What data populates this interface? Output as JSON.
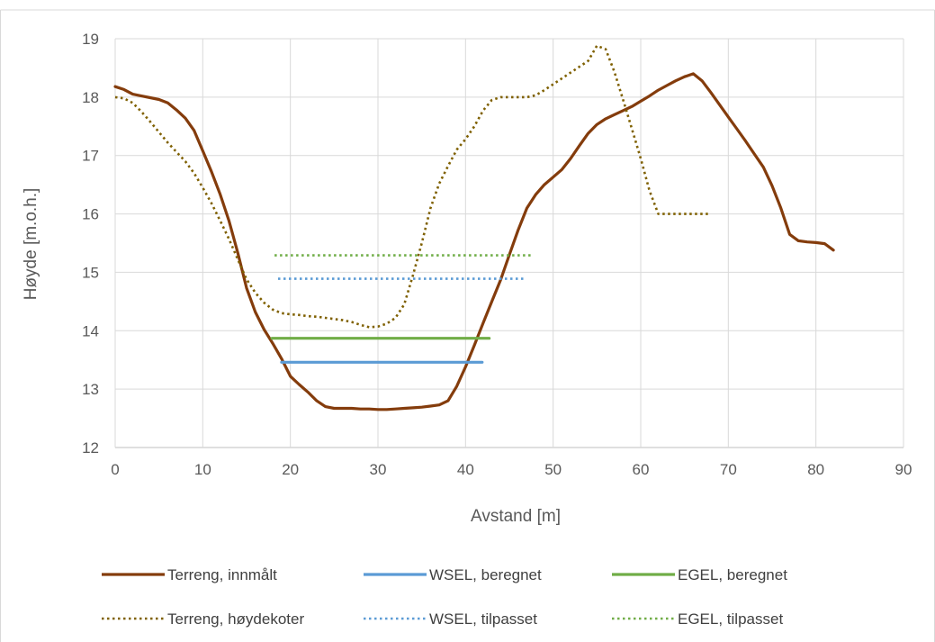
{
  "chart_data": {
    "type": "line",
    "title": "",
    "xlabel": "Avstand [m]",
    "ylabel": "Høyde [m.o.h.]",
    "xlim": [
      0,
      90
    ],
    "ylim": [
      12,
      19
    ],
    "x_ticks": [
      0,
      10,
      20,
      30,
      40,
      50,
      60,
      70,
      80,
      90
    ],
    "y_ticks": [
      12,
      13,
      14,
      15,
      16,
      17,
      18,
      19
    ],
    "grid": true,
    "legend_position": "bottom",
    "series": [
      {
        "name": "Terreng, innmålt",
        "color": "#843C0C",
        "style": "solid",
        "points": [
          [
            0,
            18.18
          ],
          [
            1,
            18.13
          ],
          [
            2,
            18.05
          ],
          [
            3,
            18.02
          ],
          [
            4,
            17.99
          ],
          [
            5,
            17.96
          ],
          [
            6,
            17.9
          ],
          [
            7,
            17.78
          ],
          [
            8,
            17.64
          ],
          [
            9,
            17.43
          ],
          [
            10,
            17.08
          ],
          [
            11,
            16.72
          ],
          [
            12,
            16.33
          ],
          [
            13,
            15.88
          ],
          [
            14,
            15.33
          ],
          [
            15,
            14.73
          ],
          [
            16,
            14.32
          ],
          [
            17,
            14.02
          ],
          [
            18,
            13.78
          ],
          [
            19,
            13.52
          ],
          [
            20,
            13.22
          ],
          [
            21,
            13.08
          ],
          [
            22,
            12.95
          ],
          [
            23,
            12.8
          ],
          [
            24,
            12.7
          ],
          [
            25,
            12.67
          ],
          [
            26,
            12.67
          ],
          [
            27,
            12.67
          ],
          [
            28,
            12.66
          ],
          [
            29,
            12.66
          ],
          [
            30,
            12.65
          ],
          [
            31,
            12.65
          ],
          [
            32,
            12.66
          ],
          [
            33,
            12.67
          ],
          [
            34,
            12.68
          ],
          [
            35,
            12.69
          ],
          [
            36,
            12.71
          ],
          [
            37,
            12.73
          ],
          [
            38,
            12.8
          ],
          [
            39,
            13.05
          ],
          [
            40,
            13.38
          ],
          [
            41,
            13.75
          ],
          [
            42,
            14.13
          ],
          [
            43,
            14.5
          ],
          [
            44,
            14.87
          ],
          [
            45,
            15.3
          ],
          [
            46,
            15.72
          ],
          [
            47,
            16.1
          ],
          [
            48,
            16.33
          ],
          [
            49,
            16.5
          ],
          [
            50,
            16.63
          ],
          [
            51,
            16.76
          ],
          [
            52,
            16.95
          ],
          [
            53,
            17.17
          ],
          [
            54,
            17.38
          ],
          [
            55,
            17.53
          ],
          [
            56,
            17.63
          ],
          [
            57,
            17.7
          ],
          [
            58,
            17.77
          ],
          [
            59,
            17.84
          ],
          [
            60,
            17.93
          ],
          [
            61,
            18.02
          ],
          [
            62,
            18.12
          ],
          [
            63,
            18.2
          ],
          [
            64,
            18.28
          ],
          [
            65,
            18.35
          ],
          [
            66,
            18.4
          ],
          [
            67,
            18.28
          ],
          [
            68,
            18.08
          ],
          [
            69,
            17.87
          ],
          [
            70,
            17.66
          ],
          [
            71,
            17.45
          ],
          [
            72,
            17.24
          ],
          [
            73,
            17.02
          ],
          [
            74,
            16.8
          ],
          [
            75,
            16.48
          ],
          [
            76,
            16.1
          ],
          [
            77,
            15.65
          ],
          [
            78,
            15.54
          ],
          [
            79,
            15.52
          ],
          [
            80,
            15.51
          ],
          [
            81,
            15.49
          ],
          [
            82,
            15.38
          ]
        ]
      },
      {
        "name": "WSEL, beregnet",
        "color": "#5B9BD5",
        "style": "solid",
        "points": [
          [
            19,
            13.46
          ],
          [
            41.9,
            13.46
          ]
        ]
      },
      {
        "name": "EGEL, beregnet",
        "color": "#70AD47",
        "style": "solid",
        "points": [
          [
            17.9,
            13.87
          ],
          [
            42.7,
            13.87
          ]
        ]
      },
      {
        "name": "Terreng, høydekoter",
        "color": "#7F6000",
        "style": "dotted",
        "points": [
          [
            0,
            18.0
          ],
          [
            1,
            17.98
          ],
          [
            2,
            17.9
          ],
          [
            3,
            17.75
          ],
          [
            4,
            17.58
          ],
          [
            5,
            17.4
          ],
          [
            6,
            17.22
          ],
          [
            7,
            17.06
          ],
          [
            8,
            16.9
          ],
          [
            9,
            16.7
          ],
          [
            10,
            16.45
          ],
          [
            11,
            16.18
          ],
          [
            12,
            15.88
          ],
          [
            13,
            15.57
          ],
          [
            14,
            15.22
          ],
          [
            15,
            14.88
          ],
          [
            16,
            14.65
          ],
          [
            17,
            14.48
          ],
          [
            18,
            14.36
          ],
          [
            19,
            14.3
          ],
          [
            20,
            14.28
          ],
          [
            21,
            14.27
          ],
          [
            22,
            14.25
          ],
          [
            23,
            14.24
          ],
          [
            24,
            14.22
          ],
          [
            25,
            14.2
          ],
          [
            26,
            14.18
          ],
          [
            27,
            14.15
          ],
          [
            28,
            14.1
          ],
          [
            29,
            14.06
          ],
          [
            30,
            14.07
          ],
          [
            31,
            14.12
          ],
          [
            32,
            14.22
          ],
          [
            33,
            14.45
          ],
          [
            34,
            14.95
          ],
          [
            35,
            15.5
          ],
          [
            36,
            16.1
          ],
          [
            37,
            16.52
          ],
          [
            38,
            16.82
          ],
          [
            39,
            17.1
          ],
          [
            40,
            17.28
          ],
          [
            41,
            17.5
          ],
          [
            42,
            17.77
          ],
          [
            43,
            17.95
          ],
          [
            44,
            18.0
          ],
          [
            45,
            18.0
          ],
          [
            46,
            18.0
          ],
          [
            47,
            18.0
          ],
          [
            48,
            18.03
          ],
          [
            49,
            18.12
          ],
          [
            50,
            18.22
          ],
          [
            51,
            18.32
          ],
          [
            52,
            18.42
          ],
          [
            53,
            18.52
          ],
          [
            54,
            18.62
          ],
          [
            55,
            18.88
          ],
          [
            56,
            18.82
          ],
          [
            57,
            18.43
          ],
          [
            58,
            17.95
          ],
          [
            59,
            17.45
          ],
          [
            60,
            16.95
          ],
          [
            61,
            16.4
          ],
          [
            62,
            16.0
          ],
          [
            63,
            16.0
          ],
          [
            64,
            16.0
          ],
          [
            65,
            16.0
          ],
          [
            66,
            16.0
          ],
          [
            67,
            16.0
          ],
          [
            68,
            16.0
          ]
        ]
      },
      {
        "name": "WSEL, tilpasset",
        "color": "#5B9BD5",
        "style": "dotted",
        "points": [
          [
            18.6,
            14.89
          ],
          [
            46.9,
            14.89
          ]
        ]
      },
      {
        "name": "EGEL, tilpasset",
        "color": "#70AD47",
        "style": "dotted",
        "points": [
          [
            18.2,
            15.29
          ],
          [
            47.5,
            15.29
          ]
        ]
      }
    ]
  }
}
